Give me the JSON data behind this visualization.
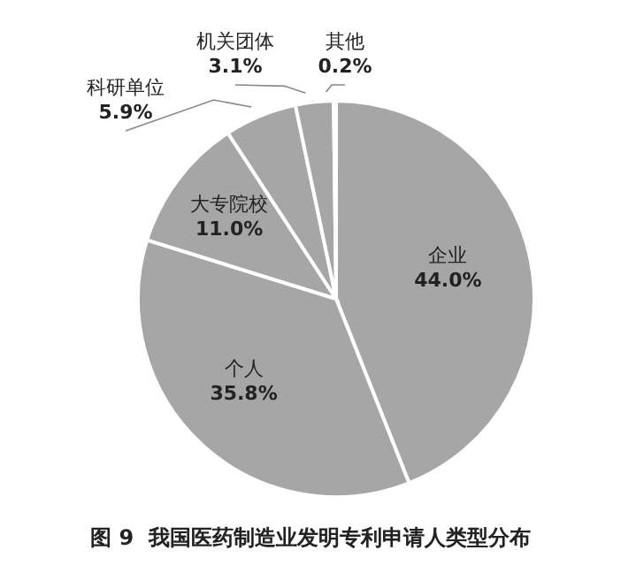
{
  "chart_data": {
    "type": "pie",
    "title": "图 9  我国医药制造业发明专利申请人类型分布",
    "categories": [
      "企业",
      "个人",
      "大专院校",
      "科研单位",
      "机关团体",
      "其他"
    ],
    "values": [
      44.0,
      35.8,
      11.0,
      5.9,
      3.1,
      0.2
    ],
    "colors": [
      "#a6a6a6",
      "#a6a6a6",
      "#a6a6a6",
      "#a6a6a6",
      "#a6a6a6",
      "#a6a6a6"
    ],
    "value_labels": [
      "44.0%",
      "35.8%",
      "11.0%",
      "5.9%",
      "3.1%",
      "0.2%"
    ]
  }
}
